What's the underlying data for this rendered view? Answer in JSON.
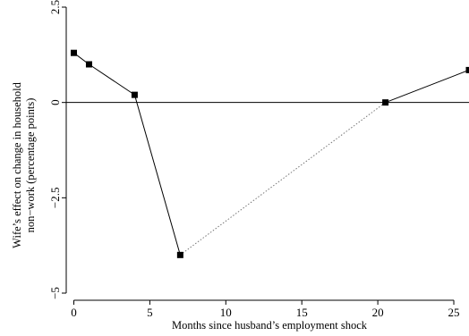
{
  "chart_data": {
    "type": "line",
    "title": "",
    "xlabel": "Months since husband’s employment shock",
    "ylabel_lines": [
      "Wife’s effect on change in household",
      "non−work (percentage points)"
    ],
    "xlim": [
      -0.5,
      26
    ],
    "ylim": [
      -5,
      2.5
    ],
    "x_ticks": [
      {
        "value": 0,
        "label": "0"
      },
      {
        "value": 5,
        "label": "5"
      },
      {
        "value": 10,
        "label": "10"
      },
      {
        "value": 15,
        "label": "15"
      },
      {
        "value": 20,
        "label": "20"
      },
      {
        "value": 25,
        "label": "25"
      }
    ],
    "y_ticks": [
      {
        "value": 2.5,
        "label": "2.5"
      },
      {
        "value": 0,
        "label": "0"
      },
      {
        "value": -2.5,
        "label": "−2.5"
      },
      {
        "value": -5,
        "label": "−5"
      }
    ],
    "reference_line_y": 0,
    "series": [
      {
        "x": [
          0,
          1,
          4,
          7,
          20.5,
          26
        ],
        "y": [
          1.3,
          1.0,
          0.2,
          -4.0,
          0.0,
          0.85
        ],
        "marker": "square",
        "segment_styles": [
          "solid",
          "solid",
          "solid",
          "dotted",
          "solid"
        ]
      }
    ],
    "grid": false,
    "legend": "none"
  }
}
